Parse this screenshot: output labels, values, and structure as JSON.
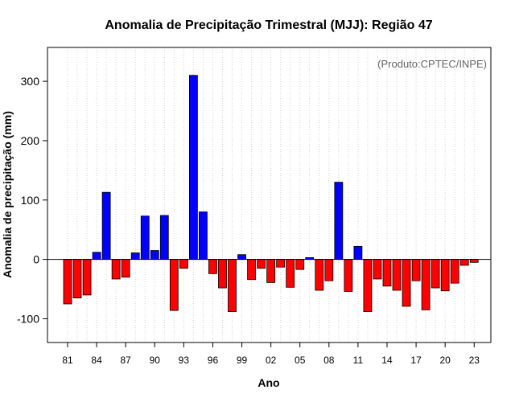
{
  "chart_data": {
    "type": "bar",
    "title": "Anomalia de Precipitação Trimestral (MJJ): Região 47",
    "xlabel": "Ano",
    "ylabel": "Anomalia de precipitação (mm)",
    "annotation": "(Produto:CPTEC/INPE)",
    "ylim": [
      -140,
      357
    ],
    "yticks": [
      -100,
      0,
      100,
      200,
      300
    ],
    "grid": "vertical dotted",
    "positive_color": "#0000ff",
    "negative_color": "#ff0000",
    "x_tick_labels": [
      {
        "year": 1981,
        "label": "81"
      },
      {
        "year": 1984,
        "label": "84"
      },
      {
        "year": 1987,
        "label": "87"
      },
      {
        "year": 1990,
        "label": "90"
      },
      {
        "year": 1993,
        "label": "93"
      },
      {
        "year": 1996,
        "label": "96"
      },
      {
        "year": 1999,
        "label": "99"
      },
      {
        "year": 2002,
        "label": "02"
      },
      {
        "year": 2005,
        "label": "05"
      },
      {
        "year": 2008,
        "label": "08"
      },
      {
        "year": 2011,
        "label": "11"
      },
      {
        "year": 2014,
        "label": "14"
      },
      {
        "year": 2017,
        "label": "17"
      },
      {
        "year": 2020,
        "label": "20"
      },
      {
        "year": 2023,
        "label": "23"
      }
    ],
    "categories": [
      1981,
      1982,
      1983,
      1984,
      1985,
      1986,
      1987,
      1988,
      1989,
      1990,
      1991,
      1992,
      1993,
      1994,
      1995,
      1996,
      1997,
      1998,
      1999,
      2000,
      2001,
      2002,
      2003,
      2004,
      2005,
      2006,
      2007,
      2008,
      2009,
      2010,
      2011,
      2012,
      2013,
      2014,
      2015,
      2016,
      2017,
      2018,
      2019,
      2020,
      2021,
      2022,
      2023
    ],
    "values": [
      -75,
      -65,
      -60,
      12,
      113,
      -33,
      -30,
      11,
      73,
      15,
      74,
      -86,
      -15,
      310,
      80,
      -24,
      -48,
      -88,
      8,
      -34,
      -15,
      -39,
      -13,
      -47,
      -17,
      3,
      -52,
      -36,
      130,
      -54,
      22,
      -88,
      -33,
      -45,
      -52,
      -79,
      -36,
      -85,
      -48,
      -53,
      -40,
      -10,
      -5
    ]
  }
}
